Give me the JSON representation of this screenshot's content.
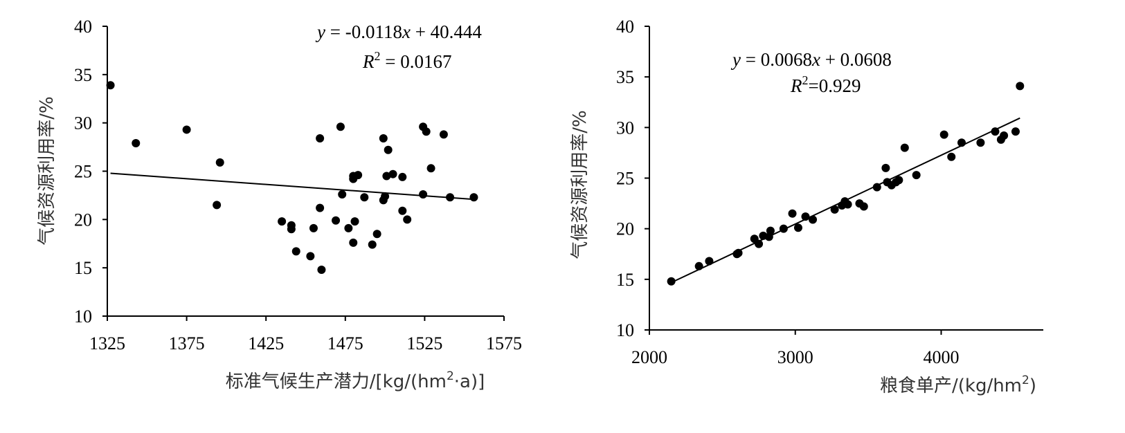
{
  "chart_data": [
    {
      "type": "scatter",
      "xlabel_parts": {
        "main": "标准气候生产潜力/[kg/(hm",
        "sup": "2",
        "tail": "·a)]"
      },
      "ylabel": "气候资源利用率/%",
      "xlim": [
        1325,
        1575
      ],
      "ylim": [
        10,
        40
      ],
      "xticks": [
        1325,
        1375,
        1425,
        1475,
        1525,
        1575
      ],
      "yticks": [
        10,
        15,
        20,
        25,
        30,
        35,
        40
      ],
      "equation": {
        "y": "y",
        "eq1": " = -0.0118",
        "x": "x",
        "eq2": " + 40.444"
      },
      "r2": {
        "r": "R",
        "sup": "2",
        "val": " = 0.0167"
      },
      "trendline": {
        "slope": -0.0118,
        "intercept": 40.444,
        "x_range": [
          1327,
          1557
        ]
      },
      "points": [
        [
          1327,
          33.9
        ],
        [
          1343,
          27.9
        ],
        [
          1375,
          29.3
        ],
        [
          1396,
          25.9
        ],
        [
          1394,
          21.5
        ],
        [
          1435,
          19.8
        ],
        [
          1441,
          19.4
        ],
        [
          1441,
          19.0
        ],
        [
          1444,
          16.7
        ],
        [
          1453,
          16.2
        ],
        [
          1455,
          19.1
        ],
        [
          1459,
          28.4
        ],
        [
          1459,
          21.2
        ],
        [
          1460,
          14.8
        ],
        [
          1469,
          19.9
        ],
        [
          1472,
          29.6
        ],
        [
          1473,
          22.6
        ],
        [
          1477,
          19.1
        ],
        [
          1480,
          24.5
        ],
        [
          1480,
          24.2
        ],
        [
          1480,
          17.6
        ],
        [
          1481,
          19.8
        ],
        [
          1483,
          24.6
        ],
        [
          1487,
          22.3
        ],
        [
          1492,
          17.4
        ],
        [
          1495,
          18.5
        ],
        [
          1499,
          28.4
        ],
        [
          1499,
          22.0
        ],
        [
          1500,
          22.4
        ],
        [
          1501,
          24.5
        ],
        [
          1502,
          27.2
        ],
        [
          1505,
          24.7
        ],
        [
          1511,
          24.4
        ],
        [
          1511,
          20.9
        ],
        [
          1514,
          20.0
        ],
        [
          1524,
          29.6
        ],
        [
          1524,
          22.6
        ],
        [
          1526,
          29.1
        ],
        [
          1529,
          25.3
        ],
        [
          1537,
          28.8
        ],
        [
          1541,
          22.3
        ],
        [
          1556,
          22.3
        ]
      ]
    },
    {
      "type": "scatter",
      "xlabel_parts": {
        "main": "粮食单产/(kg/hm",
        "sup": "2",
        "tail": ")"
      },
      "ylabel": "气候资源利用率/%",
      "xlim": [
        2000,
        4700
      ],
      "ylim": [
        10,
        40
      ],
      "xticks": [
        2000,
        3000,
        4000
      ],
      "yticks": [
        10,
        15,
        20,
        25,
        30,
        35,
        40
      ],
      "equation": {
        "y": "y",
        "eq1": " = 0.0068",
        "x": "x",
        "eq2": " + 0.0608"
      },
      "r2": {
        "r": "R",
        "sup": "2",
        "val": "=0.929"
      },
      "trendline": {
        "slope": 0.0068,
        "intercept": 0.0608,
        "x_range": [
          2150,
          4540
        ]
      },
      "points": [
        [
          2150,
          14.8
        ],
        [
          2340,
          16.3
        ],
        [
          2410,
          16.8
        ],
        [
          2600,
          17.5
        ],
        [
          2610,
          17.6
        ],
        [
          2720,
          19.0
        ],
        [
          2750,
          18.5
        ],
        [
          2780,
          19.3
        ],
        [
          2820,
          19.2
        ],
        [
          2830,
          19.8
        ],
        [
          2920,
          20.0
        ],
        [
          2980,
          21.5
        ],
        [
          3020,
          20.1
        ],
        [
          3070,
          21.2
        ],
        [
          3120,
          20.9
        ],
        [
          3270,
          21.9
        ],
        [
          3320,
          22.3
        ],
        [
          3340,
          22.7
        ],
        [
          3360,
          22.4
        ],
        [
          3440,
          22.5
        ],
        [
          3470,
          22.2
        ],
        [
          3560,
          24.1
        ],
        [
          3620,
          26.0
        ],
        [
          3630,
          24.6
        ],
        [
          3660,
          24.3
        ],
        [
          3690,
          24.6
        ],
        [
          3710,
          24.8
        ],
        [
          3750,
          28.0
        ],
        [
          3830,
          25.3
        ],
        [
          4020,
          29.3
        ],
        [
          4070,
          27.1
        ],
        [
          4140,
          28.5
        ],
        [
          4270,
          28.5
        ],
        [
          4370,
          29.6
        ],
        [
          4410,
          28.8
        ],
        [
          4430,
          29.2
        ],
        [
          4510,
          29.6
        ],
        [
          4540,
          34.1
        ]
      ]
    }
  ]
}
